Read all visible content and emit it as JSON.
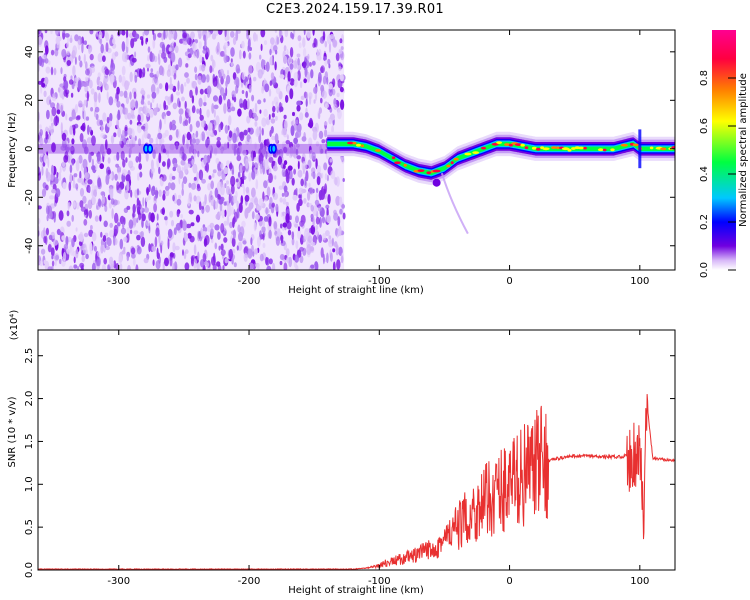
{
  "title": "C2E3.2024.159.17.39.R01",
  "chart_data": [
    {
      "type": "heatmap",
      "xlabel": "Height of straight line (km)",
      "ylabel": "Frequency (Hz)",
      "xlim": [
        -362,
        127
      ],
      "ylim": [
        -50,
        49
      ],
      "x_ticks": [
        -300,
        -200,
        -100,
        0,
        100
      ],
      "y_ticks": [
        -40,
        -20,
        0,
        20,
        40
      ],
      "colorbar": {
        "label": "Normalized spectral amplitude",
        "range": [
          0,
          1
        ],
        "ticks": [
          0.0,
          0.2,
          0.4,
          0.6,
          0.8
        ],
        "colors": [
          "#ffffff",
          "#c8a0f5",
          "#7000e0",
          "#0000ff",
          "#00c8ff",
          "#00ff40",
          "#ffff00",
          "#ff8000",
          "#ff0040",
          "#ff0090"
        ]
      },
      "noise_region_x_range": [
        -362,
        -127
      ],
      "signal_track": {
        "x": [
          -140,
          -130,
          -120,
          -110,
          -100,
          -90,
          -80,
          -70,
          -60,
          -50,
          -40,
          -30,
          -20,
          -10,
          0,
          10,
          20,
          40,
          60,
          80,
          95,
          100,
          105,
          127
        ],
        "frequency": [
          2,
          2,
          2,
          1,
          -1,
          -4,
          -7,
          -9,
          -10,
          -8,
          -4,
          -2,
          0,
          2,
          2,
          1,
          0,
          0,
          0,
          0,
          2,
          0,
          0,
          0
        ]
      },
      "grid": false
    },
    {
      "type": "line",
      "xlabel": "Height of straight line (km)",
      "ylabel": "SNR (10 * v/v)",
      "y_multiplier_label": "(x10⁴)",
      "xlim": [
        -362,
        127
      ],
      "ylim": [
        0,
        2.8
      ],
      "x_ticks": [
        -300,
        -200,
        -100,
        0,
        100
      ],
      "y_ticks": [
        0.0,
        0.5,
        1.0,
        1.5,
        2.0,
        2.5
      ],
      "color": "#e83030",
      "series": [
        {
          "x": [
            -362,
            -300,
            -200,
            -120,
            -105,
            -100,
            -90,
            -80,
            -70,
            -60,
            -50,
            -40,
            -30,
            -20,
            -10,
            0,
            10,
            20,
            30,
            40,
            50,
            60,
            70,
            80,
            90,
            95,
            100,
            103,
            105,
            110,
            127
          ],
          "values": [
            0.01,
            0.01,
            0.01,
            0.01,
            0.03,
            0.06,
            0.1,
            0.14,
            0.18,
            0.25,
            0.35,
            0.5,
            0.65,
            0.78,
            0.9,
            1.0,
            1.1,
            1.2,
            1.28,
            1.31,
            1.33,
            1.33,
            1.32,
            1.32,
            1.33,
            1.35,
            1.4,
            0.5,
            2.0,
            1.3,
            1.28
          ]
        }
      ],
      "grid": false
    }
  ]
}
